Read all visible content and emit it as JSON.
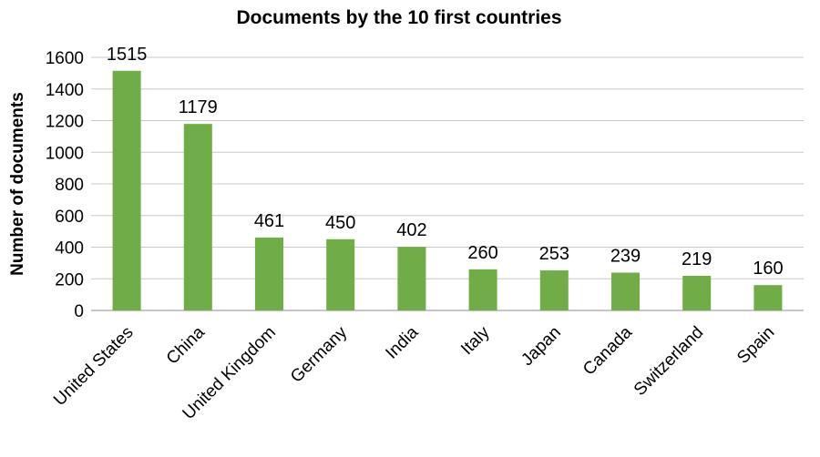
{
  "chart_data": {
    "type": "bar",
    "title": "Documents by the 10 first countries",
    "xlabel": "",
    "ylabel": "Number of documents",
    "categories": [
      "United States",
      "China",
      "United Kingdom",
      "Germany",
      "India",
      "Italy",
      "Japan",
      "Canada",
      "Switzerland",
      "Spain"
    ],
    "values": [
      1515,
      1179,
      461,
      450,
      402,
      260,
      253,
      239,
      219,
      160
    ],
    "ylim": [
      0,
      1600
    ],
    "yticks": [
      0,
      200,
      400,
      600,
      800,
      1000,
      1200,
      1400,
      1600
    ],
    "grid": true,
    "legend": "none",
    "bar_color": "#70ad47",
    "data_labels": true
  }
}
